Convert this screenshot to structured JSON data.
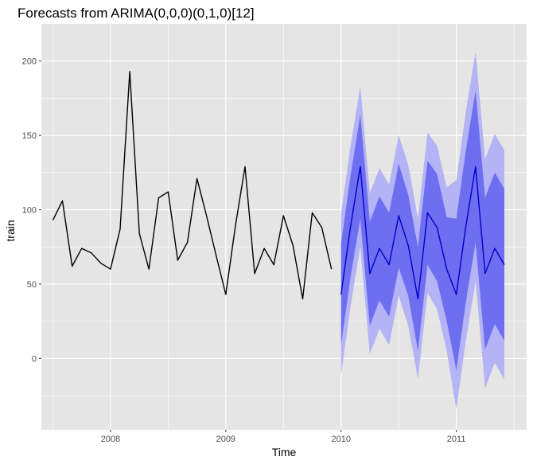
{
  "chart_data": {
    "type": "line",
    "title": "Forecasts from ARIMA(0,0,0)(0,1,0)[12]",
    "xlabel": "Time",
    "ylabel": "train",
    "xlim": [
      2007.4,
      2011.61
    ],
    "ylim": [
      -48,
      225
    ],
    "x_ticks": [
      2008,
      2009,
      2010,
      2011
    ],
    "y_ticks": [
      0,
      50,
      100,
      150,
      200
    ],
    "grid": true,
    "colors": {
      "panel": "#e5e5e5",
      "grid": "#ffffff",
      "history": "#000000",
      "forecast": "#0000cc",
      "band80": "#6e6ef0",
      "band95": "#b3b3f5"
    },
    "series": [
      {
        "role": "history",
        "x": [
          2007.5,
          2007.583,
          2007.667,
          2007.75,
          2007.833,
          2007.917,
          2008.0,
          2008.083,
          2008.167,
          2008.25,
          2008.333,
          2008.417,
          2008.5,
          2008.583,
          2008.667,
          2008.75,
          2008.833,
          2008.917,
          2009.0,
          2009.083,
          2009.167,
          2009.25,
          2009.333,
          2009.417,
          2009.5,
          2009.583,
          2009.667,
          2009.75,
          2009.833,
          2009.917
        ],
        "y": [
          93,
          106,
          62,
          74,
          71,
          64,
          60,
          87,
          193,
          84,
          60,
          108,
          112,
          66,
          78,
          121,
          96,
          69,
          43,
          89,
          129,
          57,
          74,
          63,
          96,
          76,
          40,
          98,
          88,
          60
        ]
      },
      {
        "role": "forecast",
        "x": [
          2010.0,
          2010.083,
          2010.167,
          2010.25,
          2010.333,
          2010.417,
          2010.5,
          2010.583,
          2010.667,
          2010.75,
          2010.833,
          2010.917,
          2011.0,
          2011.083,
          2011.167,
          2011.25,
          2011.333,
          2011.417
        ],
        "y": [
          43,
          89,
          129,
          57,
          74,
          63,
          96,
          76,
          40,
          98,
          88,
          60,
          43,
          89,
          129,
          57,
          74,
          63
        ],
        "lo80": [
          9,
          55,
          94,
          22,
          39,
          28,
          61,
          42,
          5,
          63,
          52,
          25,
          -8,
          38,
          78,
          6,
          23,
          12
        ],
        "hi80": [
          77,
          123,
          164,
          92,
          109,
          98,
          131,
          110,
          75,
          133,
          124,
          95,
          94,
          140,
          180,
          108,
          125,
          114
        ],
        "lo95": [
          -11,
          35,
          75,
          3,
          20,
          9,
          42,
          22,
          -14,
          44,
          33,
          5,
          -34,
          12,
          52,
          -20,
          -3,
          -14
        ],
        "hi95": [
          97,
          143,
          183,
          111,
          128,
          117,
          150,
          130,
          94,
          152,
          143,
          115,
          120,
          166,
          206,
          134,
          151,
          140
        ]
      }
    ]
  }
}
